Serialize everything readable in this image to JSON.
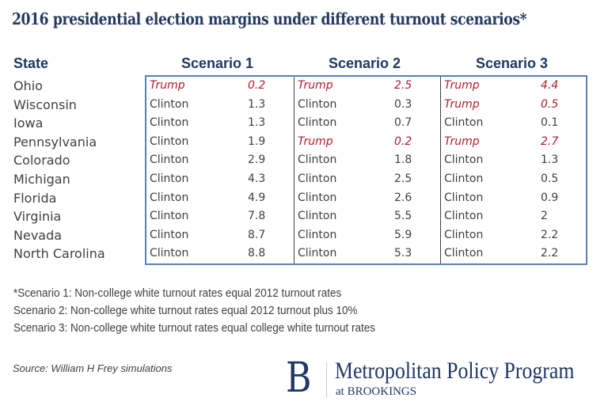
{
  "title": "2016 presidential election margins under different turnout scenarios*",
  "headers": {
    "state": "State",
    "scenario1": "Scenario 1",
    "scenario2": "Scenario 2",
    "scenario3": "Scenario 3"
  },
  "colors": {
    "title": "#243a5e",
    "header": "#1f3864",
    "trump": "#b01c2e",
    "text": "#404040",
    "table_border": "#5b80b8"
  },
  "rows": [
    {
      "state": "Ohio",
      "s1": {
        "winner": "Trump",
        "margin": "0.2"
      },
      "s2": {
        "winner": "Trump",
        "margin": "2.5"
      },
      "s3": {
        "winner": "Trump",
        "margin": "4.4"
      }
    },
    {
      "state": "Wisconsin",
      "s1": {
        "winner": "Clinton",
        "margin": "1.3"
      },
      "s2": {
        "winner": "Clinton",
        "margin": "0.3"
      },
      "s3": {
        "winner": "Trump",
        "margin": "0.5"
      }
    },
    {
      "state": "Iowa",
      "s1": {
        "winner": "Clinton",
        "margin": "1.3"
      },
      "s2": {
        "winner": "Clinton",
        "margin": "0.7"
      },
      "s3": {
        "winner": "Clinton",
        "margin": "0.1"
      }
    },
    {
      "state": "Pennsylvania",
      "s1": {
        "winner": "Clinton",
        "margin": "1.9"
      },
      "s2": {
        "winner": "Trump",
        "margin": "0.2"
      },
      "s3": {
        "winner": "Trump",
        "margin": "2.7"
      }
    },
    {
      "state": "Colorado",
      "s1": {
        "winner": "Clinton",
        "margin": "2.9"
      },
      "s2": {
        "winner": "Clinton",
        "margin": "1.8"
      },
      "s3": {
        "winner": "Clinton",
        "margin": "1.3"
      }
    },
    {
      "state": "Michigan",
      "s1": {
        "winner": "Clinton",
        "margin": "4.3"
      },
      "s2": {
        "winner": "Clinton",
        "margin": "2.5"
      },
      "s3": {
        "winner": "Clinton",
        "margin": "0.5"
      }
    },
    {
      "state": "Florida",
      "s1": {
        "winner": "Clinton",
        "margin": "4.9"
      },
      "s2": {
        "winner": "Clinton",
        "margin": "2.6"
      },
      "s3": {
        "winner": "Clinton",
        "margin": "0.9"
      }
    },
    {
      "state": "Virginia",
      "s1": {
        "winner": "Clinton",
        "margin": "7.8"
      },
      "s2": {
        "winner": "Clinton",
        "margin": "5.5"
      },
      "s3": {
        "winner": "Clinton",
        "margin": "2"
      }
    },
    {
      "state": "Nevada",
      "s1": {
        "winner": "Clinton",
        "margin": "8.7"
      },
      "s2": {
        "winner": "Clinton",
        "margin": "5.9"
      },
      "s3": {
        "winner": "Clinton",
        "margin": "2.2"
      }
    },
    {
      "state": "North Carolina",
      "s1": {
        "winner": "Clinton",
        "margin": "8.8"
      },
      "s2": {
        "winner": "Clinton",
        "margin": "5.3"
      },
      "s3": {
        "winner": "Clinton",
        "margin": "2.2"
      }
    }
  ],
  "notes": [
    "*Scenario 1:  Non-college white turnout rates equal 2012 turnout rates",
    "Scenario 2:  Non-college white turnout rates equal 2012 turnout plus 10%",
    "Scenario 3:  Non-college white turnout rates equal college white turnout rates"
  ],
  "source": "Source: William H Frey simulations",
  "logo": {
    "letter": "B",
    "main": "Metropolitan Policy Program",
    "sub": "at BROOKINGS"
  }
}
